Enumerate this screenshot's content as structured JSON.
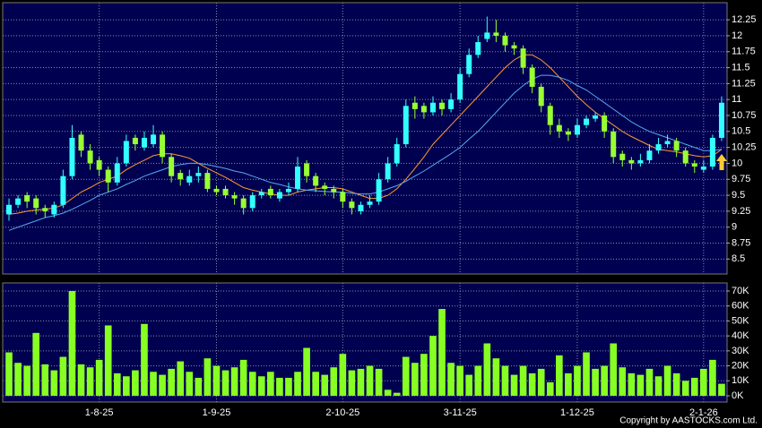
{
  "chart_data": [
    {
      "type": "candlestick",
      "categories": [
        null,
        null,
        null,
        null,
        null,
        null,
        null,
        null,
        null,
        null,
        "1-8-25",
        null,
        null,
        null,
        null,
        null,
        null,
        null,
        null,
        null,
        null,
        null,
        null,
        "1-9-25",
        null,
        null,
        null,
        null,
        null,
        null,
        null,
        null,
        null,
        null,
        null,
        null,
        null,
        "2-10-25",
        null,
        null,
        null,
        null,
        null,
        null,
        null,
        null,
        null,
        null,
        null,
        null,
        "3-11-25",
        null,
        null,
        null,
        null,
        null,
        null,
        null,
        null,
        null,
        null,
        null,
        null,
        "1-12-25",
        null,
        null,
        null,
        null,
        null,
        null,
        null,
        null,
        null,
        null,
        null,
        null,
        null,
        "2-1-26",
        null,
        null
      ],
      "open": [
        9.2,
        9.35,
        9.5,
        9.45,
        9.3,
        9.2,
        9.35,
        9.8,
        10.45,
        10.2,
        10.05,
        9.9,
        9.7,
        10.0,
        10.4,
        10.25,
        10.3,
        10.45,
        10.1,
        9.85,
        9.7,
        9.8,
        9.85,
        9.6,
        9.6,
        9.5,
        9.45,
        9.3,
        9.5,
        9.6,
        9.45,
        9.55,
        9.6,
        10.0,
        9.8,
        9.65,
        9.6,
        9.55,
        9.4,
        9.25,
        9.35,
        9.4,
        9.75,
        10.0,
        10.3,
        10.95,
        10.9,
        10.8,
        10.95,
        10.85,
        11.0,
        11.4,
        11.7,
        11.95,
        12.05,
        12.0,
        11.85,
        11.8,
        11.5,
        11.2,
        10.9,
        10.6,
        10.5,
        10.45,
        10.6,
        10.7,
        10.75,
        10.5,
        10.15,
        10.05,
        10.0,
        10.05,
        10.2,
        10.3,
        10.35,
        10.2,
        10.0,
        9.9,
        9.95,
        10.4
      ],
      "high": [
        9.45,
        9.5,
        9.55,
        9.5,
        9.35,
        9.4,
        9.9,
        10.6,
        10.5,
        10.3,
        10.1,
        9.95,
        10.1,
        10.45,
        10.45,
        10.5,
        10.6,
        10.5,
        10.15,
        9.9,
        9.9,
        9.95,
        9.9,
        9.65,
        9.65,
        9.55,
        9.5,
        9.55,
        9.6,
        9.65,
        9.6,
        9.7,
        10.1,
        10.05,
        9.85,
        9.7,
        9.65,
        9.6,
        9.45,
        9.4,
        9.5,
        9.85,
        10.1,
        10.4,
        11.0,
        11.05,
        10.95,
        11.05,
        11.0,
        11.1,
        11.5,
        11.8,
        12.0,
        12.3,
        12.25,
        12.05,
        11.9,
        11.85,
        11.55,
        11.25,
        10.95,
        10.7,
        10.55,
        10.7,
        10.75,
        10.8,
        10.8,
        10.55,
        10.2,
        10.1,
        10.15,
        10.3,
        10.4,
        10.45,
        10.4,
        10.25,
        10.05,
        10.05,
        10.45,
        11.05
      ],
      "low": [
        9.1,
        9.3,
        9.3,
        9.2,
        9.15,
        9.15,
        9.3,
        9.75,
        10.1,
        9.9,
        9.8,
        9.55,
        9.65,
        9.95,
        10.2,
        10.2,
        10.25,
        10.0,
        9.7,
        9.65,
        9.65,
        9.7,
        9.55,
        9.5,
        9.45,
        9.35,
        9.2,
        9.25,
        9.45,
        9.45,
        9.4,
        9.5,
        9.55,
        9.7,
        9.55,
        9.5,
        9.45,
        9.3,
        9.2,
        9.2,
        9.3,
        9.35,
        9.7,
        9.95,
        10.25,
        10.7,
        10.7,
        10.75,
        10.75,
        10.8,
        10.95,
        11.35,
        11.65,
        11.9,
        11.9,
        11.75,
        11.7,
        11.4,
        11.1,
        10.8,
        10.45,
        10.4,
        10.35,
        10.4,
        10.55,
        10.65,
        10.4,
        10.0,
        9.95,
        9.9,
        9.95,
        10.0,
        10.15,
        10.25,
        10.1,
        9.95,
        9.85,
        9.85,
        9.9,
        10.35
      ],
      "close": [
        9.35,
        9.45,
        9.4,
        9.3,
        9.25,
        9.35,
        9.8,
        10.4,
        10.2,
        10.0,
        9.9,
        9.7,
        10.0,
        10.35,
        10.3,
        10.4,
        10.45,
        10.1,
        9.8,
        9.75,
        9.8,
        9.85,
        9.6,
        9.55,
        9.5,
        9.45,
        9.3,
        9.5,
        9.55,
        9.5,
        9.55,
        9.6,
        9.95,
        9.8,
        9.65,
        9.6,
        9.55,
        9.4,
        9.3,
        9.35,
        9.4,
        9.75,
        10.0,
        10.3,
        10.9,
        10.85,
        10.8,
        10.95,
        10.85,
        11.0,
        11.4,
        11.7,
        11.9,
        12.05,
        12.0,
        11.85,
        11.8,
        11.5,
        11.2,
        10.9,
        10.6,
        10.5,
        10.45,
        10.6,
        10.7,
        10.75,
        10.5,
        10.1,
        10.05,
        10.0,
        10.05,
        10.2,
        10.3,
        10.35,
        10.2,
        10.0,
        9.95,
        9.95,
        10.4,
        10.95
      ],
      "up_color": "#33ffff",
      "down_color": "#99ff33",
      "series": [
        {
          "color": "#ff9933",
          "values": [
            9.2,
            9.22,
            9.25,
            9.27,
            9.28,
            9.3,
            9.35,
            9.45,
            9.55,
            9.62,
            9.7,
            9.75,
            9.8,
            9.9,
            9.98,
            10.05,
            10.12,
            10.15,
            10.15,
            10.12,
            10.08,
            10.0,
            9.92,
            9.85,
            9.78,
            9.7,
            9.62,
            9.58,
            9.55,
            9.52,
            9.5,
            9.5,
            9.55,
            9.58,
            9.6,
            9.62,
            9.62,
            9.6,
            9.55,
            9.5,
            9.45,
            9.45,
            9.5,
            9.6,
            9.75,
            9.92,
            10.1,
            10.3,
            10.45,
            10.6,
            10.75,
            10.9,
            11.05,
            11.2,
            11.35,
            11.5,
            11.62,
            11.7,
            11.7,
            11.62,
            11.5,
            11.35,
            11.2,
            11.05,
            10.92,
            10.8,
            10.7,
            10.6,
            10.5,
            10.42,
            10.35,
            10.28,
            10.22,
            10.2,
            10.18,
            10.15,
            10.12,
            10.1,
            10.12,
            10.22
          ]
        },
        {
          "color": "#55aaee",
          "values": [
            8.95,
            9.0,
            9.05,
            9.1,
            9.15,
            9.18,
            9.22,
            9.28,
            9.35,
            9.42,
            9.5,
            9.55,
            9.6,
            9.67,
            9.73,
            9.8,
            9.85,
            9.9,
            9.95,
            9.98,
            10.0,
            10.0,
            9.98,
            9.95,
            9.92,
            9.88,
            9.85,
            9.8,
            9.75,
            9.7,
            9.67,
            9.63,
            9.6,
            9.58,
            9.57,
            9.56,
            9.55,
            9.55,
            9.53,
            9.52,
            9.52,
            9.55,
            9.6,
            9.65,
            9.72,
            9.8,
            9.88,
            9.97,
            10.06,
            10.15,
            10.25,
            10.38,
            10.5,
            10.65,
            10.8,
            10.95,
            11.1,
            11.22,
            11.32,
            11.38,
            11.38,
            11.35,
            11.3,
            11.22,
            11.15,
            11.05,
            10.95,
            10.85,
            10.75,
            10.65,
            10.57,
            10.5,
            10.45,
            10.4,
            10.35,
            10.3,
            10.25,
            10.2,
            10.2,
            10.22
          ]
        }
      ],
      "ylim": [
        8.28,
        12.49
      ],
      "yticks": [
        8.5,
        8.75,
        9,
        9.25,
        9.5,
        9.75,
        10,
        10.25,
        10.5,
        10.75,
        11,
        11.25,
        11.5,
        11.75,
        12,
        12.25
      ],
      "grid": true
    },
    {
      "type": "bar",
      "values": [
        29000,
        22000,
        20000,
        42000,
        21000,
        17000,
        26000,
        70000,
        21000,
        19000,
        24000,
        47000,
        15000,
        13000,
        17000,
        48000,
        16000,
        14000,
        18000,
        23000,
        16000,
        12000,
        25000,
        20000,
        17000,
        19000,
        24000,
        16000,
        13000,
        16000,
        12000,
        12000,
        16000,
        32000,
        16000,
        14000,
        19000,
        28000,
        17000,
        18000,
        20000,
        18000,
        4000,
        2000,
        26000,
        22000,
        28000,
        40000,
        58000,
        22000,
        20000,
        14000,
        20000,
        35000,
        25000,
        20000,
        14000,
        20000,
        15000,
        18000,
        9000,
        27000,
        15000,
        20000,
        29000,
        18000,
        20000,
        35000,
        19000,
        15000,
        14000,
        18000,
        13000,
        20000,
        15000,
        10000,
        12000,
        18000,
        24000,
        8000
      ],
      "color": "#88ff22",
      "ylim": [
        -3600,
        74200
      ],
      "yticks": [
        {
          "value": 0,
          "label": "0K"
        },
        {
          "value": 10000,
          "label": "10K"
        },
        {
          "value": 20000,
          "label": "20K"
        },
        {
          "value": 30000,
          "label": "30K"
        },
        {
          "value": 40000,
          "label": "40K"
        },
        {
          "value": 50000,
          "label": "50K"
        },
        {
          "value": 60000,
          "label": "60K"
        },
        {
          "value": 70000,
          "label": "70K"
        }
      ],
      "grid": true
    }
  ],
  "copyright": "Copyright by AASTOCKS.com Ltd."
}
